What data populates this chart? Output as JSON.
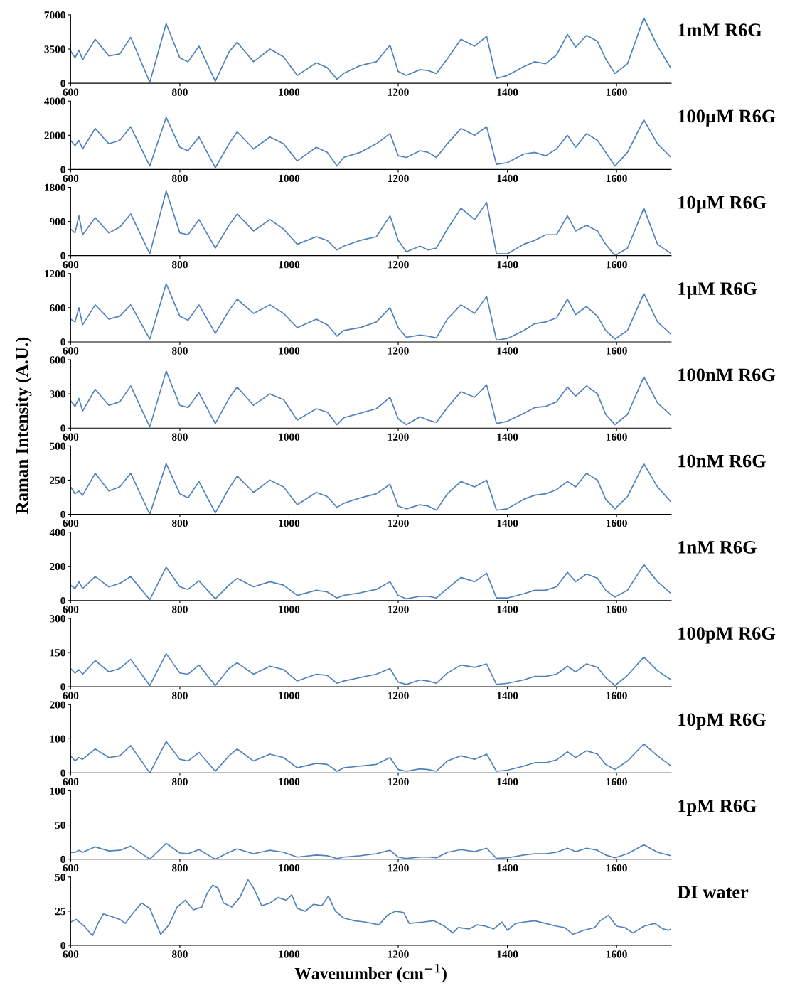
{
  "chart_data": [
    {
      "type": "line",
      "title": "1mM R6G",
      "x": [
        600,
        608,
        615,
        622,
        645,
        670,
        690,
        710,
        745,
        775,
        800,
        815,
        835,
        865,
        890,
        905,
        935,
        965,
        990,
        1015,
        1050,
        1070,
        1088,
        1100,
        1130,
        1160,
        1185,
        1200,
        1215,
        1240,
        1255,
        1270,
        1290,
        1315,
        1340,
        1362,
        1380,
        1400,
        1430,
        1450,
        1470,
        1490,
        1510,
        1525,
        1545,
        1565,
        1580,
        1597,
        1620,
        1650,
        1675,
        1700
      ],
      "xlim": [
        600,
        1700
      ],
      "xticks": [
        600,
        800,
        1000,
        1200,
        1400,
        1600
      ],
      "ylim": [
        0,
        7000
      ],
      "yticks": [
        0,
        3500,
        7000
      ],
      "grid": false,
      "legend": false,
      "series": [
        {
          "color": "#4f81bd",
          "values": [
            3300,
            2600,
            3400,
            2400,
            4500,
            2800,
            3000,
            4700,
            100,
            6100,
            2600,
            2200,
            3800,
            200,
            3200,
            4200,
            2200,
            3500,
            2700,
            800,
            2100,
            1600,
            400,
            1000,
            1800,
            2200,
            3900,
            1200,
            800,
            1400,
            1300,
            1000,
            2500,
            4500,
            3800,
            4800,
            500,
            800,
            1700,
            2200,
            2000,
            2900,
            5000,
            3700,
            4900,
            4300,
            2500,
            1000,
            2000,
            6700,
            3800,
            1500
          ]
        }
      ]
    },
    {
      "type": "line",
      "title": "100µM R6G",
      "x": [
        600,
        608,
        615,
        622,
        645,
        670,
        690,
        710,
        745,
        775,
        800,
        815,
        835,
        865,
        890,
        905,
        935,
        965,
        990,
        1015,
        1050,
        1070,
        1088,
        1100,
        1130,
        1160,
        1185,
        1200,
        1215,
        1240,
        1255,
        1270,
        1290,
        1315,
        1340,
        1362,
        1380,
        1400,
        1430,
        1450,
        1470,
        1490,
        1510,
        1525,
        1545,
        1565,
        1580,
        1597,
        1620,
        1650,
        1675,
        1700
      ],
      "xlim": [
        600,
        1700
      ],
      "xticks": [
        600,
        800,
        1000,
        1200,
        1400,
        1600
      ],
      "ylim": [
        0,
        4000
      ],
      "yticks": [
        0,
        2000,
        4000
      ],
      "grid": false,
      "legend": false,
      "series": [
        {
          "color": "#4f81bd",
          "values": [
            1700,
            1400,
            1700,
            1200,
            2400,
            1500,
            1700,
            2500,
            200,
            3050,
            1300,
            1100,
            1900,
            100,
            1500,
            2200,
            1200,
            1900,
            1500,
            500,
            1300,
            1000,
            200,
            700,
            1000,
            1500,
            2100,
            800,
            700,
            1100,
            1000,
            700,
            1500,
            2400,
            2000,
            2500,
            300,
            400,
            900,
            1000,
            800,
            1200,
            2000,
            1300,
            2100,
            1700,
            1000,
            200,
            1000,
            2900,
            1500,
            700
          ]
        }
      ]
    },
    {
      "type": "line",
      "title": "10µM R6G",
      "x": [
        600,
        608,
        615,
        622,
        645,
        670,
        690,
        710,
        745,
        775,
        800,
        815,
        835,
        865,
        890,
        905,
        935,
        965,
        990,
        1015,
        1050,
        1070,
        1088,
        1100,
        1130,
        1160,
        1185,
        1200,
        1215,
        1240,
        1255,
        1270,
        1290,
        1315,
        1340,
        1362,
        1380,
        1400,
        1430,
        1450,
        1470,
        1490,
        1510,
        1525,
        1545,
        1565,
        1580,
        1597,
        1620,
        1650,
        1675,
        1700
      ],
      "xlim": [
        600,
        1700
      ],
      "xticks": [
        600,
        800,
        1000,
        1200,
        1400,
        1600
      ],
      "ylim": [
        0,
        1800
      ],
      "yticks": [
        0,
        900,
        1800
      ],
      "grid": false,
      "legend": false,
      "series": [
        {
          "color": "#4f81bd",
          "values": [
            700,
            600,
            1050,
            550,
            1000,
            600,
            750,
            1100,
            50,
            1700,
            600,
            550,
            950,
            200,
            800,
            1100,
            650,
            950,
            700,
            300,
            500,
            400,
            150,
            250,
            400,
            500,
            1050,
            400,
            100,
            250,
            150,
            200,
            700,
            1250,
            950,
            1400,
            50,
            50,
            300,
            400,
            550,
            550,
            1050,
            650,
            800,
            650,
            300,
            0,
            200,
            1250,
            300,
            50
          ]
        }
      ]
    },
    {
      "type": "line",
      "title": "1µM R6G",
      "x": [
        600,
        608,
        615,
        622,
        645,
        670,
        690,
        710,
        745,
        775,
        800,
        815,
        835,
        865,
        890,
        905,
        935,
        965,
        990,
        1015,
        1050,
        1070,
        1088,
        1100,
        1130,
        1160,
        1185,
        1200,
        1215,
        1240,
        1255,
        1270,
        1290,
        1315,
        1340,
        1362,
        1380,
        1400,
        1430,
        1450,
        1470,
        1490,
        1510,
        1525,
        1545,
        1565,
        1580,
        1597,
        1620,
        1650,
        1675,
        1700
      ],
      "xlim": [
        600,
        1700
      ],
      "xticks": [
        600,
        800,
        1000,
        1200,
        1400,
        1600
      ],
      "ylim": [
        0,
        1200
      ],
      "yticks": [
        0,
        600,
        1200
      ],
      "grid": false,
      "legend": false,
      "series": [
        {
          "color": "#4f81bd",
          "values": [
            400,
            350,
            600,
            300,
            650,
            400,
            450,
            650,
            50,
            1020,
            450,
            380,
            650,
            150,
            550,
            750,
            500,
            650,
            500,
            250,
            400,
            300,
            100,
            200,
            250,
            350,
            600,
            250,
            80,
            120,
            100,
            70,
            400,
            650,
            500,
            800,
            30,
            60,
            200,
            320,
            350,
            420,
            750,
            480,
            620,
            450,
            200,
            50,
            200,
            850,
            350,
            130
          ]
        }
      ]
    },
    {
      "type": "line",
      "title": "100nM R6G",
      "x": [
        600,
        608,
        615,
        622,
        645,
        670,
        690,
        710,
        745,
        775,
        800,
        815,
        835,
        865,
        890,
        905,
        935,
        965,
        990,
        1015,
        1050,
        1070,
        1088,
        1100,
        1130,
        1160,
        1185,
        1200,
        1215,
        1240,
        1255,
        1270,
        1290,
        1315,
        1340,
        1362,
        1380,
        1400,
        1430,
        1450,
        1470,
        1490,
        1510,
        1525,
        1545,
        1565,
        1580,
        1597,
        1620,
        1650,
        1675,
        1700
      ],
      "xlim": [
        600,
        1700
      ],
      "xticks": [
        600,
        800,
        1000,
        1200,
        1400,
        1600
      ],
      "ylim": [
        0,
        600
      ],
      "yticks": [
        0,
        300,
        600
      ],
      "grid": false,
      "legend": false,
      "series": [
        {
          "color": "#4f81bd",
          "values": [
            240,
            190,
            260,
            150,
            340,
            200,
            230,
            370,
            10,
            500,
            200,
            180,
            310,
            40,
            260,
            360,
            200,
            300,
            250,
            70,
            170,
            140,
            30,
            90,
            130,
            170,
            270,
            80,
            30,
            100,
            70,
            50,
            180,
            320,
            270,
            380,
            40,
            60,
            130,
            180,
            190,
            230,
            360,
            280,
            370,
            300,
            120,
            30,
            120,
            450,
            220,
            110
          ]
        }
      ]
    },
    {
      "type": "line",
      "title": "10nM R6G",
      "ylabel": "Raman Intensity (A.U.)",
      "x": [
        600,
        608,
        615,
        622,
        645,
        670,
        690,
        710,
        745,
        775,
        800,
        815,
        835,
        865,
        890,
        905,
        935,
        965,
        990,
        1015,
        1050,
        1070,
        1088,
        1100,
        1130,
        1160,
        1185,
        1200,
        1215,
        1240,
        1255,
        1270,
        1290,
        1315,
        1340,
        1362,
        1380,
        1400,
        1430,
        1450,
        1470,
        1490,
        1510,
        1525,
        1545,
        1565,
        1580,
        1597,
        1620,
        1650,
        1675,
        1700
      ],
      "xlim": [
        600,
        1700
      ],
      "xticks": [
        600,
        800,
        1000,
        1200,
        1400,
        1600
      ],
      "ylim": [
        0,
        500
      ],
      "yticks": [
        0,
        250,
        500
      ],
      "grid": false,
      "legend": false,
      "series": [
        {
          "color": "#4f81bd",
          "values": [
            200,
            150,
            170,
            140,
            300,
            170,
            200,
            300,
            0,
            370,
            150,
            120,
            240,
            10,
            190,
            280,
            160,
            250,
            200,
            70,
            160,
            130,
            50,
            80,
            120,
            150,
            220,
            60,
            40,
            70,
            60,
            30,
            150,
            240,
            200,
            250,
            30,
            40,
            110,
            140,
            150,
            180,
            240,
            200,
            300,
            250,
            110,
            40,
            130,
            370,
            200,
            90
          ]
        }
      ]
    },
    {
      "type": "line",
      "title": "1nM R6G",
      "x": [
        600,
        608,
        615,
        622,
        645,
        670,
        690,
        710,
        745,
        775,
        800,
        815,
        835,
        865,
        890,
        905,
        935,
        965,
        990,
        1015,
        1050,
        1070,
        1088,
        1100,
        1130,
        1160,
        1185,
        1200,
        1215,
        1240,
        1255,
        1270,
        1290,
        1315,
        1340,
        1362,
        1380,
        1400,
        1430,
        1450,
        1470,
        1490,
        1510,
        1525,
        1545,
        1565,
        1580,
        1597,
        1620,
        1650,
        1675,
        1700
      ],
      "xlim": [
        600,
        1700
      ],
      "xticks": [
        600,
        800,
        1000,
        1200,
        1400,
        1600
      ],
      "ylim": [
        0,
        400
      ],
      "yticks": [
        0,
        200,
        400
      ],
      "grid": false,
      "legend": false,
      "series": [
        {
          "color": "#4f81bd",
          "values": [
            90,
            70,
            110,
            70,
            140,
            80,
            100,
            140,
            5,
            195,
            80,
            65,
            115,
            10,
            90,
            130,
            80,
            110,
            90,
            30,
            60,
            50,
            15,
            30,
            45,
            65,
            110,
            30,
            10,
            25,
            25,
            15,
            70,
            135,
            110,
            160,
            15,
            15,
            40,
            60,
            60,
            80,
            165,
            110,
            155,
            130,
            60,
            20,
            60,
            210,
            110,
            40
          ]
        }
      ]
    },
    {
      "type": "line",
      "title": "100pM R6G",
      "x": [
        600,
        608,
        615,
        622,
        645,
        670,
        690,
        710,
        745,
        775,
        800,
        815,
        835,
        865,
        890,
        905,
        935,
        965,
        990,
        1015,
        1050,
        1070,
        1088,
        1100,
        1130,
        1160,
        1185,
        1200,
        1215,
        1240,
        1255,
        1270,
        1290,
        1315,
        1340,
        1362,
        1380,
        1400,
        1430,
        1450,
        1470,
        1490,
        1510,
        1525,
        1545,
        1565,
        1580,
        1597,
        1620,
        1650,
        1675,
        1700
      ],
      "xlim": [
        600,
        1700
      ],
      "xticks": [
        600,
        800,
        1000,
        1200,
        1400,
        1600
      ],
      "ylim": [
        0,
        300
      ],
      "yticks": [
        0,
        150,
        300
      ],
      "grid": false,
      "legend": false,
      "series": [
        {
          "color": "#4f81bd",
          "values": [
            80,
            60,
            75,
            55,
            115,
            65,
            80,
            120,
            5,
            145,
            60,
            55,
            95,
            5,
            80,
            105,
            55,
            90,
            75,
            25,
            55,
            50,
            15,
            25,
            40,
            55,
            80,
            20,
            10,
            30,
            25,
            15,
            60,
            95,
            85,
            100,
            10,
            15,
            30,
            45,
            45,
            55,
            90,
            65,
            100,
            85,
            40,
            5,
            50,
            130,
            70,
            30
          ]
        }
      ]
    },
    {
      "type": "line",
      "title": "10pM R6G",
      "x": [
        600,
        608,
        615,
        622,
        645,
        670,
        690,
        710,
        745,
        775,
        800,
        815,
        835,
        865,
        890,
        905,
        935,
        965,
        990,
        1015,
        1050,
        1070,
        1088,
        1100,
        1130,
        1160,
        1185,
        1200,
        1215,
        1240,
        1255,
        1270,
        1290,
        1315,
        1340,
        1362,
        1380,
        1400,
        1430,
        1450,
        1470,
        1490,
        1510,
        1525,
        1545,
        1565,
        1580,
        1597,
        1620,
        1650,
        1675,
        1700
      ],
      "xlim": [
        600,
        1700
      ],
      "xticks": [
        600,
        800,
        1000,
        1200,
        1400,
        1600
      ],
      "ylim": [
        0,
        200
      ],
      "yticks": [
        0,
        100,
        200
      ],
      "grid": false,
      "legend": false,
      "series": [
        {
          "color": "#4f81bd",
          "values": [
            50,
            35,
            45,
            40,
            70,
            45,
            50,
            80,
            0,
            92,
            40,
            35,
            60,
            5,
            50,
            70,
            35,
            55,
            45,
            15,
            28,
            25,
            5,
            15,
            20,
            25,
            45,
            10,
            5,
            12,
            10,
            5,
            35,
            50,
            40,
            55,
            5,
            8,
            20,
            30,
            30,
            38,
            62,
            45,
            65,
            55,
            25,
            10,
            35,
            85,
            50,
            20
          ]
        }
      ]
    },
    {
      "type": "line",
      "title": "1pM R6G",
      "x": [
        600,
        608,
        615,
        622,
        645,
        670,
        690,
        710,
        745,
        775,
        800,
        815,
        835,
        865,
        890,
        905,
        935,
        965,
        990,
        1015,
        1050,
        1070,
        1088,
        1100,
        1130,
        1160,
        1185,
        1200,
        1215,
        1240,
        1255,
        1270,
        1290,
        1315,
        1340,
        1362,
        1380,
        1400,
        1430,
        1450,
        1470,
        1490,
        1510,
        1525,
        1545,
        1565,
        1580,
        1597,
        1620,
        1650,
        1675,
        1700
      ],
      "xlim": [
        600,
        1700
      ],
      "xticks": [
        600,
        800,
        1000,
        1200,
        1400,
        1600
      ],
      "ylim": [
        0,
        100
      ],
      "yticks": [
        0,
        50,
        100
      ],
      "grid": false,
      "legend": false,
      "series": [
        {
          "color": "#4f81bd",
          "values": [
            10,
            10,
            13,
            10,
            18,
            12,
            13,
            19,
            0,
            23,
            9,
            8,
            14,
            0,
            10,
            15,
            8,
            13,
            10,
            3,
            6,
            5,
            1,
            3,
            5,
            8,
            13,
            3,
            1,
            3,
            3,
            2,
            10,
            14,
            11,
            16,
            1,
            2,
            6,
            8,
            8,
            10,
            16,
            11,
            16,
            13,
            6,
            2,
            8,
            21,
            10,
            5
          ]
        }
      ]
    },
    {
      "type": "line",
      "title": "DI water",
      "xlabel": "Wavenumber (cm$^{−1}$)",
      "x": [
        600,
        610,
        625,
        640,
        650,
        660,
        675,
        690,
        700,
        715,
        730,
        745,
        765,
        780,
        795,
        810,
        825,
        840,
        850,
        860,
        870,
        880,
        895,
        910,
        925,
        935,
        950,
        965,
        980,
        995,
        1005,
        1015,
        1030,
        1045,
        1060,
        1072,
        1085,
        1100,
        1120,
        1140,
        1165,
        1180,
        1195,
        1210,
        1220,
        1245,
        1265,
        1285,
        1300,
        1310,
        1330,
        1345,
        1360,
        1375,
        1390,
        1400,
        1415,
        1430,
        1450,
        1470,
        1490,
        1505,
        1520,
        1540,
        1560,
        1570,
        1585,
        1600,
        1615,
        1630,
        1650,
        1670,
        1685,
        1695,
        1700
      ],
      "xlim": [
        600,
        1700
      ],
      "xticks": [
        600,
        800,
        1000,
        1200,
        1400,
        1600
      ],
      "ylim": [
        0,
        50
      ],
      "yticks": [
        0,
        25,
        50
      ],
      "grid": false,
      "legend": false,
      "series": [
        {
          "color": "#4f81bd",
          "values": [
            17,
            19,
            14,
            7,
            16,
            23,
            21,
            19,
            16,
            24,
            31,
            27,
            8,
            15,
            28,
            33,
            26,
            28,
            38,
            44,
            42,
            31,
            28,
            35,
            48,
            42,
            29,
            31,
            35,
            33,
            37,
            27,
            25,
            30,
            29,
            36,
            25,
            20,
            18,
            17,
            15,
            22,
            25,
            24,
            16,
            17,
            18,
            14,
            9,
            13,
            12,
            15,
            14,
            12,
            17,
            11,
            16,
            17,
            18,
            16,
            14,
            13,
            8,
            11,
            13,
            18,
            22,
            14,
            13,
            9,
            14,
            16,
            12,
            11,
            12
          ]
        }
      ]
    }
  ]
}
